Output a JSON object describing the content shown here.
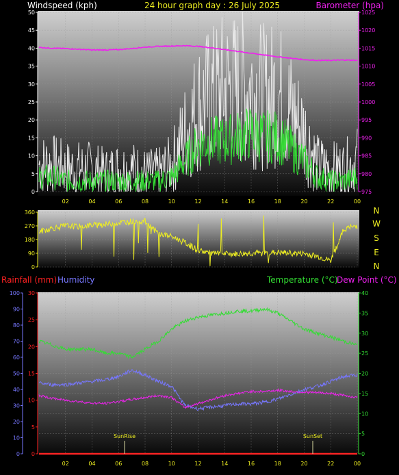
{
  "header": {
    "windspeed_label": "Windspeed (kph)",
    "title": "24 hour graph day : 26 July 2025",
    "barometer_label": "Barometer (hpa)"
  },
  "lower_header": {
    "rainfall_label": "Rainfall (mm)",
    "humidity_label": "Humidity",
    "temperature_label": "Temperature (°C)",
    "dewpoint_label": "Dew Point (°C)"
  },
  "compass": [
    "N",
    "W",
    "S",
    "E",
    "N"
  ],
  "markers": {
    "sunrise": "SunRise",
    "sunset": "SunSet"
  },
  "colors": {
    "wind_gust": "#e8e8e8",
    "wind_avg": "#33dd33",
    "barometer": "#ee22ee",
    "direction": "#eeee22",
    "rainfall": "#ff2222",
    "humidity": "#7777ff",
    "temperature": "#33dd33",
    "dewpoint": "#ee22ee"
  },
  "chart_data": [
    {
      "type": "line",
      "xlabel": "",
      "x_ticks": [
        "02",
        "04",
        "06",
        "08",
        "10",
        "12",
        "14",
        "16",
        "18",
        "20",
        "22",
        "00"
      ],
      "left_axis": {
        "label": "Windspeed (kph)",
        "ylim": [
          0,
          50
        ],
        "ticks": [
          0,
          5,
          10,
          15,
          20,
          25,
          30,
          35,
          40,
          45,
          50
        ]
      },
      "right_axis": {
        "label": "Barometer (hpa)",
        "ylim": [
          975,
          1025
        ],
        "ticks": [
          975,
          980,
          985,
          990,
          995,
          1000,
          1005,
          1010,
          1015,
          1020,
          1025
        ]
      },
      "series": [
        {
          "name": "Gust",
          "axis": "left",
          "hours": [
            0,
            1,
            2,
            3,
            4,
            5,
            6,
            7,
            8,
            9,
            10,
            11,
            12,
            13,
            14,
            15,
            16,
            17,
            18,
            19,
            20,
            21,
            22,
            23,
            24
          ],
          "values": [
            5,
            5,
            4,
            4,
            4,
            3,
            4,
            4,
            3,
            3,
            5,
            12,
            18,
            20,
            22,
            22,
            22,
            20,
            21,
            17,
            12,
            5,
            4,
            4,
            6
          ]
        },
        {
          "name": "Average",
          "axis": "left",
          "hours": [
            0,
            1,
            2,
            3,
            4,
            5,
            6,
            7,
            8,
            9,
            10,
            11,
            12,
            13,
            14,
            15,
            16,
            17,
            18,
            19,
            20,
            21,
            22,
            23,
            24
          ],
          "values": [
            3,
            3,
            2,
            2,
            2,
            2,
            2,
            2,
            2,
            2,
            3,
            7,
            11,
            12,
            12,
            13,
            14,
            13,
            13,
            10,
            7,
            3,
            2,
            2,
            3
          ]
        },
        {
          "name": "Barometer",
          "axis": "right",
          "hours": [
            0,
            1,
            2,
            3,
            4,
            5,
            6,
            7,
            8,
            9,
            10,
            11,
            12,
            13,
            14,
            15,
            16,
            17,
            18,
            19,
            20,
            21,
            22,
            23,
            24
          ],
          "values": [
            1015.2,
            1015.0,
            1014.9,
            1014.7,
            1014.5,
            1014.5,
            1014.6,
            1014.9,
            1015.3,
            1015.5,
            1015.6,
            1015.7,
            1015.5,
            1015.1,
            1014.6,
            1014.1,
            1013.6,
            1013.1,
            1012.6,
            1012.2,
            1011.8,
            1011.6,
            1011.6,
            1011.7,
            1011.6
          ]
        }
      ]
    },
    {
      "type": "line",
      "x_ticks": [],
      "y_axis": {
        "ylim": [
          0,
          360
        ],
        "ticks": [
          0,
          90,
          180,
          270,
          360
        ]
      },
      "series": [
        {
          "name": "Wind direction",
          "hours": [
            0,
            1,
            2,
            3,
            4,
            5,
            6,
            7,
            8,
            9,
            10,
            11,
            12,
            13,
            14,
            15,
            16,
            17,
            18,
            19,
            20,
            21,
            22,
            23,
            24
          ],
          "values": [
            230,
            255,
            270,
            265,
            275,
            280,
            290,
            300,
            300,
            220,
            200,
            160,
            110,
            90,
            85,
            85,
            90,
            90,
            95,
            90,
            88,
            70,
            40,
            250,
            270
          ]
        }
      ]
    },
    {
      "type": "line",
      "x_ticks": [
        "02",
        "04",
        "06",
        "08",
        "10",
        "12",
        "14",
        "16",
        "18",
        "20",
        "22",
        "00"
      ],
      "left_axis": {
        "label": "Humidity",
        "ylim": [
          0,
          100
        ],
        "ticks": [
          0,
          10,
          20,
          30,
          40,
          50,
          60,
          70,
          80,
          90,
          100
        ]
      },
      "rain_axis": {
        "label": "Rainfall (mm)",
        "ylim": [
          0,
          30
        ],
        "ticks": [
          0,
          5,
          10,
          15,
          20,
          25,
          30
        ]
      },
      "right_axis": {
        "label": "Temperature (°C)",
        "ylim": [
          0,
          40
        ],
        "ticks": [
          0,
          5,
          10,
          15,
          20,
          25,
          30,
          35,
          40
        ]
      },
      "series": [
        {
          "name": "Rainfall",
          "axis": "rain",
          "hours": [
            0,
            24
          ],
          "values": [
            0,
            0
          ]
        },
        {
          "name": "Humidity",
          "axis": "left",
          "hours": [
            0,
            1,
            2,
            3,
            4,
            5,
            6,
            7,
            8,
            9,
            10,
            11,
            12,
            13,
            14,
            15,
            16,
            17,
            18,
            19,
            20,
            21,
            22,
            23,
            24
          ],
          "values": [
            44,
            43,
            43,
            44,
            45,
            46,
            48,
            52,
            49,
            45,
            42,
            30,
            28,
            29,
            30,
            31,
            31,
            32,
            34,
            37,
            40,
            42,
            45,
            48,
            49
          ]
        },
        {
          "name": "Temperature",
          "axis": "right",
          "hours": [
            0,
            1,
            2,
            3,
            4,
            5,
            6,
            7,
            8,
            9,
            10,
            11,
            12,
            13,
            14,
            15,
            16,
            17,
            18,
            19,
            20,
            21,
            22,
            23,
            24
          ],
          "values": [
            28,
            27,
            26,
            26,
            26,
            25,
            25,
            24,
            26,
            28,
            31,
            33,
            34,
            34.5,
            35,
            35.5,
            35.5,
            36,
            35,
            33,
            31,
            30,
            29,
            28,
            27
          ]
        },
        {
          "name": "Dew Point",
          "axis": "right",
          "hours": [
            0,
            1,
            2,
            3,
            4,
            5,
            6,
            7,
            8,
            9,
            10,
            11,
            12,
            13,
            14,
            15,
            16,
            17,
            18,
            19,
            20,
            21,
            22,
            23,
            24
          ],
          "values": [
            14.5,
            13.8,
            13.3,
            13,
            12.6,
            12.5,
            13,
            13.5,
            14,
            14.5,
            14,
            11.5,
            12.5,
            13.5,
            14.5,
            15,
            15.5,
            15.5,
            15.8,
            15.5,
            15.3,
            15.2,
            15,
            14.5,
            14
          ]
        }
      ]
    }
  ]
}
